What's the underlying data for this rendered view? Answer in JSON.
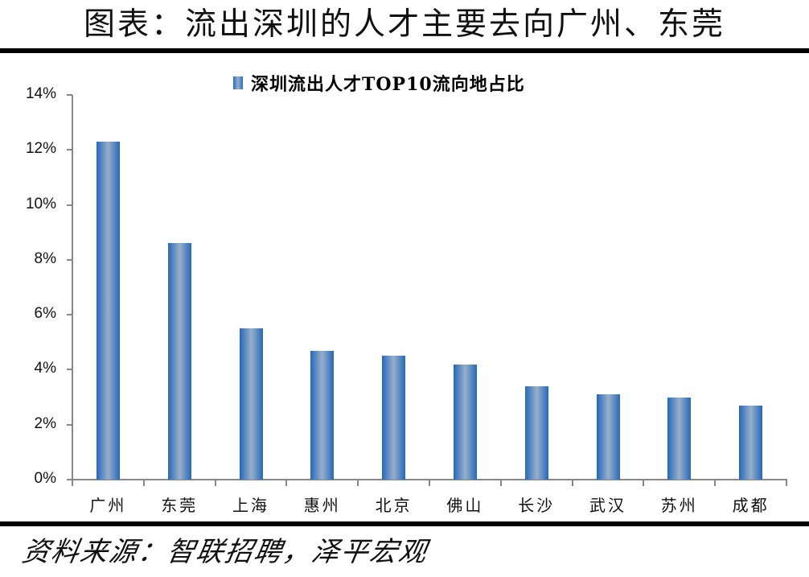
{
  "header": {
    "title": "图表：流出深圳的人才主要去向广州、东莞"
  },
  "footer": {
    "source": "资料来源：智联招聘，泽平宏观"
  },
  "colors": {
    "bar_dark": "#2468bb",
    "bar_light": "#98afc6",
    "axis": "#888888",
    "rule": "#000000"
  },
  "chart_data": {
    "type": "bar",
    "title": "图表：流出深圳的人才主要去向广州、东莞",
    "legend": [
      "深圳流出人才TOP10流向地占比"
    ],
    "legend_position": "top",
    "categories": [
      "广州",
      "东莞",
      "上海",
      "惠州",
      "北京",
      "佛山",
      "长沙",
      "武汉",
      "苏州",
      "成都"
    ],
    "series": [
      {
        "name": "深圳流出人才TOP10流向地占比",
        "values": [
          12.3,
          8.6,
          5.5,
          4.7,
          4.5,
          4.2,
          3.4,
          3.1,
          3.0,
          2.7
        ]
      }
    ],
    "xlabel": "",
    "ylabel": "",
    "ylim": [
      0,
      14
    ],
    "yticks": [
      "0%",
      "2%",
      "4%",
      "6%",
      "8%",
      "10%",
      "12%",
      "14%"
    ],
    "value_unit": "%",
    "grid": false,
    "source": "资料来源：智联招聘，泽平宏观"
  }
}
